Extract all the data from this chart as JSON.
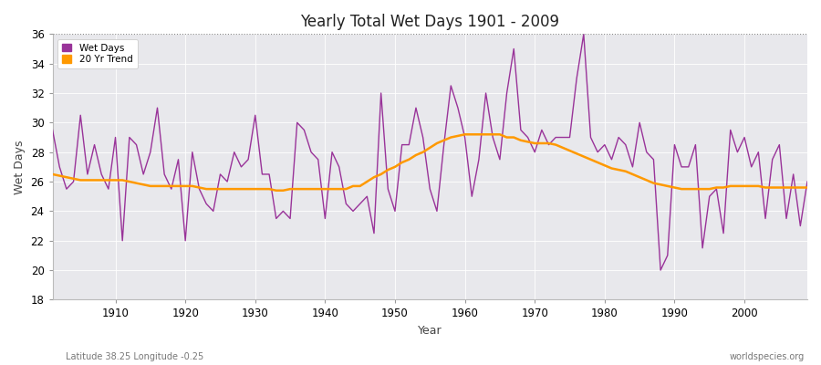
{
  "title": "Yearly Total Wet Days 1901 - 2009",
  "xlabel": "Year",
  "ylabel": "Wet Days",
  "footnote_left": "Latitude 38.25 Longitude -0.25",
  "footnote_right": "worldspecies.org",
  "ylim": [
    18,
    36
  ],
  "yticks": [
    18,
    20,
    22,
    24,
    26,
    28,
    30,
    32,
    34,
    36
  ],
  "xlim": [
    1901,
    2009
  ],
  "xticks": [
    1910,
    1920,
    1930,
    1940,
    1950,
    1960,
    1970,
    1980,
    1990,
    2000
  ],
  "wet_days_color": "#993399",
  "trend_color": "#ff9900",
  "fig_bg_color": "#ffffff",
  "plot_bg_color": "#e8e8ec",
  "grid_color": "#ffffff",
  "years": [
    1901,
    1902,
    1903,
    1904,
    1905,
    1906,
    1907,
    1908,
    1909,
    1910,
    1911,
    1912,
    1913,
    1914,
    1915,
    1916,
    1917,
    1918,
    1919,
    1920,
    1921,
    1922,
    1923,
    1924,
    1925,
    1926,
    1927,
    1928,
    1929,
    1930,
    1931,
    1932,
    1933,
    1934,
    1935,
    1936,
    1937,
    1938,
    1939,
    1940,
    1941,
    1942,
    1943,
    1944,
    1945,
    1946,
    1947,
    1948,
    1949,
    1950,
    1951,
    1952,
    1953,
    1954,
    1955,
    1956,
    1957,
    1958,
    1959,
    1960,
    1961,
    1962,
    1963,
    1964,
    1965,
    1966,
    1967,
    1968,
    1969,
    1970,
    1971,
    1972,
    1973,
    1974,
    1975,
    1976,
    1977,
    1978,
    1979,
    1980,
    1981,
    1982,
    1983,
    1984,
    1985,
    1986,
    1987,
    1988,
    1989,
    1990,
    1991,
    1992,
    1993,
    1994,
    1995,
    1996,
    1997,
    1998,
    1999,
    2000,
    2001,
    2002,
    2003,
    2004,
    2005,
    2006,
    2007,
    2008,
    2009
  ],
  "wet_days": [
    29.5,
    27.0,
    25.5,
    26.0,
    30.5,
    26.5,
    28.5,
    26.5,
    25.5,
    29.0,
    22.0,
    29.0,
    28.5,
    26.5,
    28.0,
    31.0,
    26.5,
    25.5,
    27.5,
    22.0,
    28.0,
    25.5,
    24.5,
    24.0,
    26.5,
    26.0,
    28.0,
    27.0,
    27.5,
    30.5,
    26.5,
    26.5,
    23.5,
    24.0,
    23.5,
    30.0,
    29.5,
    28.0,
    27.5,
    23.5,
    28.0,
    27.0,
    24.5,
    24.0,
    24.5,
    25.0,
    22.5,
    32.0,
    25.5,
    24.0,
    28.5,
    28.5,
    31.0,
    29.0,
    25.5,
    24.0,
    28.5,
    32.5,
    31.0,
    29.0,
    25.0,
    27.5,
    32.0,
    29.0,
    27.5,
    32.0,
    35.0,
    29.5,
    29.0,
    28.0,
    29.5,
    28.5,
    29.0,
    29.0,
    29.0,
    33.0,
    36.0,
    29.0,
    28.0,
    28.5,
    27.5,
    29.0,
    28.5,
    27.0,
    30.0,
    28.0,
    27.5,
    20.0,
    21.0,
    28.5,
    27.0,
    27.0,
    28.5,
    21.5,
    25.0,
    25.5,
    22.5,
    29.5,
    28.0,
    29.0,
    27.0,
    28.0,
    23.5,
    27.5,
    28.5,
    23.5,
    26.5,
    23.0,
    26.0
  ],
  "trend": [
    26.5,
    26.4,
    26.3,
    26.2,
    26.1,
    26.1,
    26.1,
    26.1,
    26.1,
    26.1,
    26.1,
    26.0,
    25.9,
    25.8,
    25.7,
    25.7,
    25.7,
    25.7,
    25.7,
    25.7,
    25.7,
    25.6,
    25.5,
    25.5,
    25.5,
    25.5,
    25.5,
    25.5,
    25.5,
    25.5,
    25.5,
    25.5,
    25.4,
    25.4,
    25.5,
    25.5,
    25.5,
    25.5,
    25.5,
    25.5,
    25.5,
    25.5,
    25.5,
    25.7,
    25.7,
    26.0,
    26.3,
    26.5,
    26.8,
    27.0,
    27.3,
    27.5,
    27.8,
    28.0,
    28.3,
    28.6,
    28.8,
    29.0,
    29.1,
    29.2,
    29.2,
    29.2,
    29.2,
    29.2,
    29.2,
    29.0,
    29.0,
    28.8,
    28.7,
    28.6,
    28.6,
    28.6,
    28.5,
    28.3,
    28.1,
    27.9,
    27.7,
    27.5,
    27.3,
    27.1,
    26.9,
    26.8,
    26.7,
    26.5,
    26.3,
    26.1,
    25.9,
    25.8,
    25.7,
    25.6,
    25.5,
    25.5,
    25.5,
    25.5,
    25.5,
    25.6,
    25.6,
    25.7,
    25.7,
    25.7,
    25.7,
    25.7,
    25.6,
    25.6,
    25.6,
    25.6,
    25.6,
    25.6,
    25.6
  ]
}
